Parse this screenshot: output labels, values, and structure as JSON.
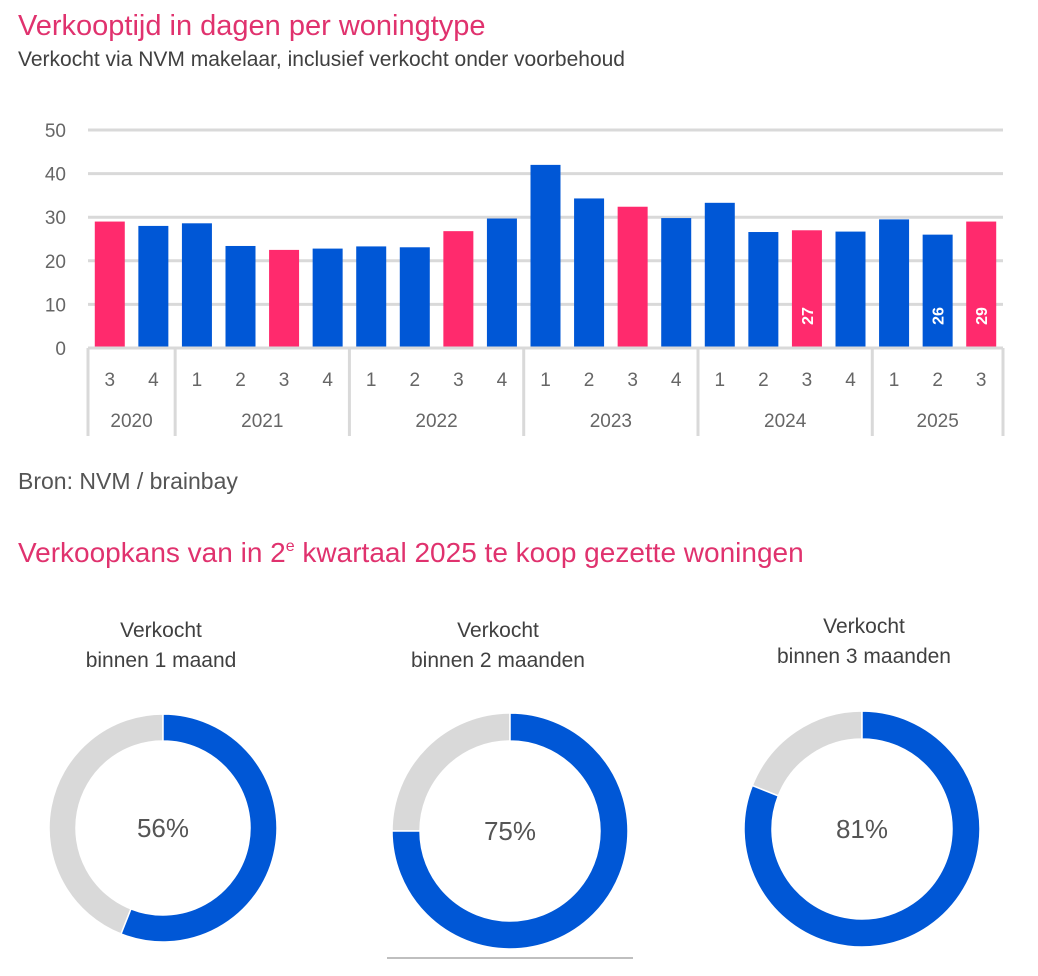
{
  "header": {
    "title": "Verkooptijd in dagen per woningtype",
    "subtitle": "Verkocht via NVM makelaar, inclusief verkocht onder voorbehoud"
  },
  "source": "Bron: NVM / brainbay",
  "section2": {
    "title_pre": "Verkoopkans van in 2",
    "title_sup": "e",
    "title_post": " kwartaal 2025 te koop gezette woningen"
  },
  "colors": {
    "accent_pink": "#ff2a6d",
    "primary_blue": "#0057d6",
    "grid": "#d9d9d9",
    "donut_rest": "#d9d9d9",
    "title_pink": "#e0326e"
  },
  "chart_data": [
    {
      "type": "bar",
      "title": "Verkooptijd in dagen per woningtype",
      "subtitle": "Verkocht via NVM makelaar, inclusief verkocht onder voorbehoud",
      "xlabel": "",
      "ylabel": "",
      "ylim": [
        0,
        50
      ],
      "yticks": [
        0,
        10,
        20,
        30,
        40,
        50
      ],
      "grid": true,
      "categories": [
        "3",
        "4",
        "1",
        "2",
        "3",
        "4",
        "1",
        "2",
        "3",
        "4",
        "1",
        "2",
        "3",
        "4",
        "1",
        "2",
        "3",
        "4",
        "1",
        "2",
        "3"
      ],
      "groups": [
        {
          "label": "2020",
          "count": 2
        },
        {
          "label": "2021",
          "count": 4
        },
        {
          "label": "2022",
          "count": 4
        },
        {
          "label": "2023",
          "count": 4
        },
        {
          "label": "2024",
          "count": 4
        },
        {
          "label": "2025",
          "count": 3
        }
      ],
      "values": [
        29,
        28,
        28.6,
        23.4,
        22.5,
        22.8,
        23.3,
        23.1,
        26.8,
        29.7,
        42,
        34.3,
        32.4,
        29.8,
        33.3,
        26.6,
        27,
        26.7,
        29.5,
        26,
        29
      ],
      "highlight": [
        true,
        false,
        false,
        false,
        true,
        false,
        false,
        false,
        true,
        false,
        false,
        false,
        true,
        false,
        false,
        false,
        true,
        false,
        false,
        false,
        true
      ],
      "data_labels": [
        null,
        null,
        null,
        null,
        null,
        null,
        null,
        null,
        null,
        null,
        null,
        null,
        null,
        null,
        null,
        null,
        "27",
        null,
        null,
        "26",
        "29"
      ]
    },
    {
      "type": "pie",
      "title": "Verkoopkans van in 2e kwartaal 2025 te koop gezette woningen",
      "charts": [
        {
          "label_line1": "Verkocht",
          "label_line2": "binnen 1 maand",
          "value": 56,
          "display": "56%"
        },
        {
          "label_line1": "Verkocht",
          "label_line2": "binnen 2 maanden",
          "value": 75,
          "display": "75%"
        },
        {
          "label_line1": "Verkocht",
          "label_line2": "binnen 3 maanden",
          "value": 81,
          "display": "81%"
        }
      ]
    }
  ]
}
